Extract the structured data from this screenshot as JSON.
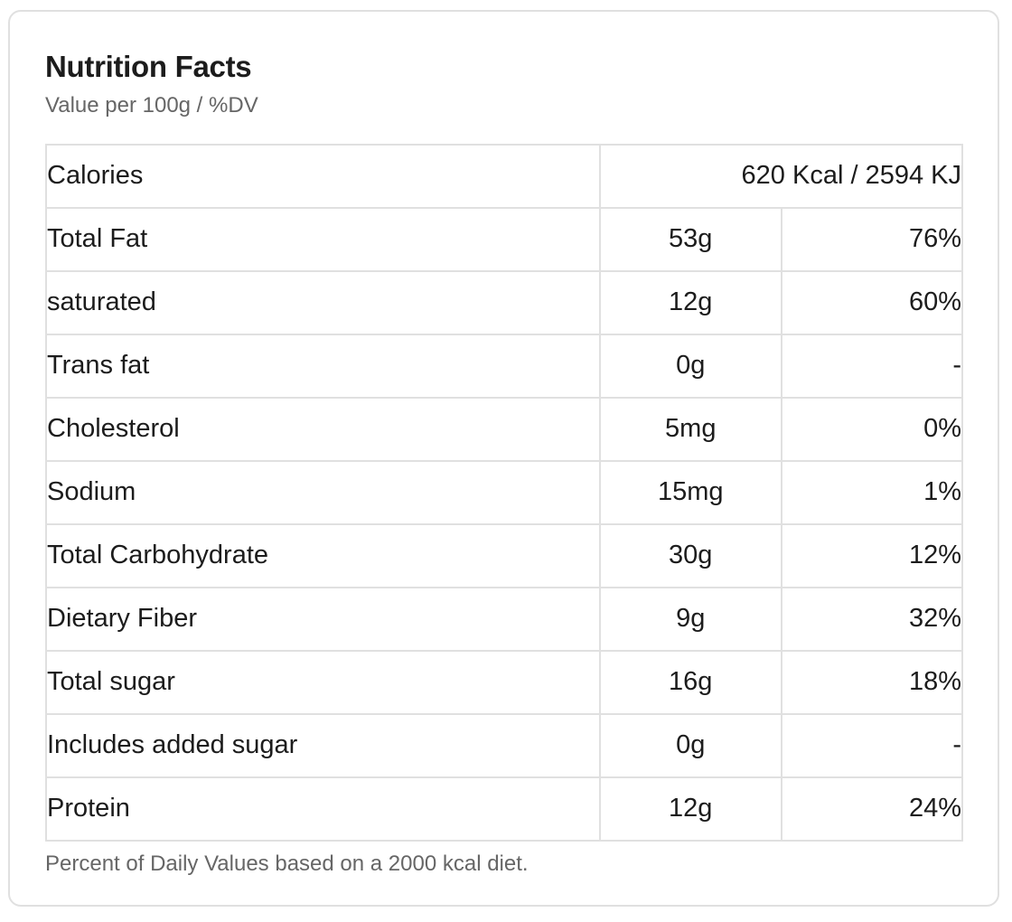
{
  "header": {
    "title": "Nutrition Facts",
    "subtitle": "Value per 100g / %DV"
  },
  "table": {
    "calories_row": {
      "label": "Calories",
      "value": "620 Kcal / 2594 KJ"
    },
    "rows": [
      {
        "label": "Total Fat",
        "value": "53g",
        "dv": "76%"
      },
      {
        "label": "saturated",
        "value": "12g",
        "dv": "60%"
      },
      {
        "label": "Trans fat",
        "value": "0g",
        "dv": "-"
      },
      {
        "label": "Cholesterol",
        "value": "5mg",
        "dv": "0%"
      },
      {
        "label": "Sodium",
        "value": "15mg",
        "dv": "1%"
      },
      {
        "label": "Total Carbohydrate",
        "value": "30g",
        "dv": "12%"
      },
      {
        "label": "Dietary Fiber",
        "value": "9g",
        "dv": "32%"
      },
      {
        "label": "Total sugar",
        "value": "16g",
        "dv": "18%"
      },
      {
        "label": "Includes added sugar",
        "value": "0g",
        "dv": "-"
      },
      {
        "label": "Protein",
        "value": "12g",
        "dv": "24%"
      }
    ]
  },
  "footer": {
    "note": "Percent of Daily Values based on a 2000 kcal diet."
  },
  "colors": {
    "border": "#e0e0e0",
    "text": "#1c1c1c",
    "muted": "#666666",
    "background": "#ffffff"
  }
}
